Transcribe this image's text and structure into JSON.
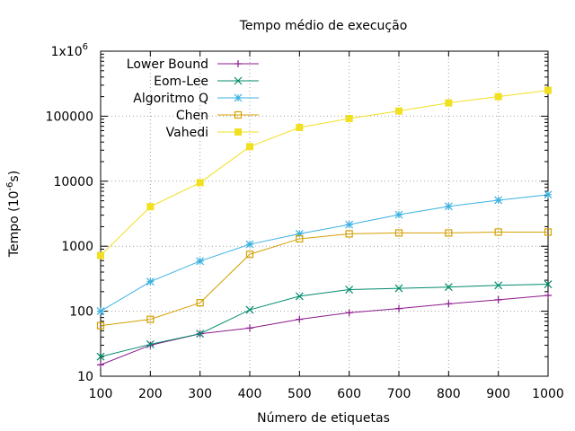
{
  "chart_data": {
    "type": "line",
    "title": "Tempo médio de execução",
    "xlabel": "Número de etiquetas",
    "ylabel_main": "Tempo (10",
    "ylabel_sup": "-6",
    "ylabel_end": "s)",
    "xlim": [
      100,
      1000
    ],
    "ylim": [
      10,
      1000000
    ],
    "yscale": "log",
    "grid": true,
    "legend_position": "top-left",
    "x": [
      100,
      200,
      300,
      400,
      500,
      600,
      700,
      800,
      900,
      1000
    ],
    "x_tick_labels": [
      "100",
      "200",
      "300",
      "400",
      "500",
      "600",
      "700",
      "800",
      "900",
      "1000"
    ],
    "y_ticks": [
      {
        "value": 10,
        "label": "10"
      },
      {
        "value": 100,
        "label": "100"
      },
      {
        "value": 1000,
        "label": "1000"
      },
      {
        "value": 10000,
        "label": "10000"
      },
      {
        "value": 100000,
        "label": "100000"
      },
      {
        "value": 1000000,
        "label": "1x10",
        "sup": "6"
      }
    ],
    "series": [
      {
        "name": "Lower Bound",
        "color": "#8b1a8b",
        "marker": "plus",
        "values": [
          15,
          30,
          45,
          55,
          75,
          95,
          110,
          130,
          150,
          175
        ]
      },
      {
        "name": "Eom-Lee",
        "color": "#008b6b",
        "marker": "cross",
        "values": [
          20,
          31,
          45,
          105,
          170,
          215,
          225,
          235,
          250,
          260
        ]
      },
      {
        "name": "Algoritmo Q",
        "color": "#3bb0e0",
        "marker": "star",
        "values": [
          100,
          285,
          590,
          1070,
          1550,
          2150,
          3050,
          4100,
          5100,
          6200
        ]
      },
      {
        "name": "Chen",
        "color": "#d4a000",
        "marker": "open-square",
        "values": [
          60,
          75,
          135,
          750,
          1300,
          1550,
          1600,
          1600,
          1650,
          1650
        ]
      },
      {
        "name": "Vahedi",
        "color": "#f0e020",
        "marker": "filled-square",
        "values": [
          720,
          4050,
          9500,
          34000,
          67000,
          92000,
          120000,
          160000,
          200000,
          250000
        ]
      }
    ]
  }
}
